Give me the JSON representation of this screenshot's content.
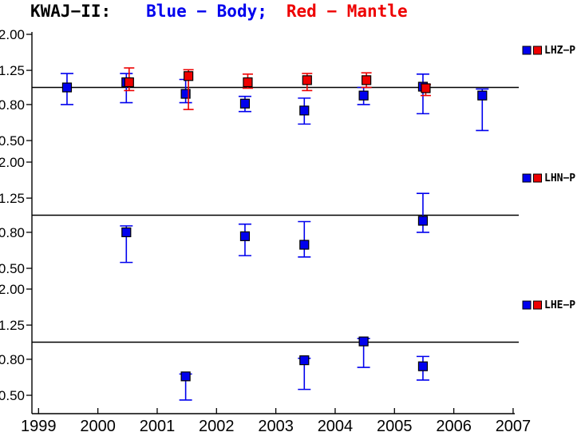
{
  "title": {
    "station": "KWAJ−II:",
    "blue_label": "Blue − Body;",
    "red_label": "Red − Mantle"
  },
  "colors": {
    "blue": "#0000ee",
    "red": "#ee0000",
    "axis": "#000000",
    "background": "#ffffff"
  },
  "chart_data": {
    "type": "scatter",
    "subtype": "error-bar-time-series",
    "title": "KWAJ−II: Blue − Body; Red − Mantle",
    "y_scale": "log",
    "x_range": [
      1999,
      2007
    ],
    "y_range": [
      0.45,
      2.0
    ],
    "x_tick_labels": [
      "1999",
      "2000",
      "2001",
      "2002",
      "2003",
      "2004",
      "2005",
      "2006",
      "2007"
    ],
    "y_tick_values": [
      2.0,
      1.25,
      0.8,
      0.5
    ],
    "y_tick_labels": [
      "2.00",
      "1.25",
      "0.80",
      "0.50"
    ],
    "reference_line": 1.0,
    "grid": false,
    "legend_position": "right",
    "panels": [
      {
        "label": "LHZ−P",
        "series": [
          {
            "name": "Body",
            "color": "#0000ee",
            "points": [
              {
                "x": 1999.5,
                "v": 1.0,
                "lo": 0.8,
                "hi": 1.2
              },
              {
                "x": 2000.5,
                "v": 1.07,
                "lo": 0.82,
                "hi": 1.2
              },
              {
                "x": 2001.5,
                "v": 0.92,
                "lo": 0.82,
                "hi": 1.11
              },
              {
                "x": 2002.5,
                "v": 0.81,
                "lo": 0.73,
                "hi": 0.89
              },
              {
                "x": 2003.5,
                "v": 0.74,
                "lo": 0.62,
                "hi": 0.87
              },
              {
                "x": 2004.5,
                "v": 0.9,
                "lo": 0.8,
                "hi": 1.0
              },
              {
                "x": 2005.5,
                "v": 1.01,
                "lo": 0.71,
                "hi": 1.19
              },
              {
                "x": 2006.5,
                "v": 0.9,
                "lo": 0.57,
                "hi": 0.98
              }
            ]
          },
          {
            "name": "Mantle",
            "color": "#ee0000",
            "points": [
              {
                "x": 2000.5,
                "v": 1.07,
                "lo": 0.96,
                "hi": 1.29
              },
              {
                "x": 2001.5,
                "v": 1.16,
                "lo": 0.75,
                "hi": 1.26
              },
              {
                "x": 2002.5,
                "v": 1.07,
                "lo": 0.99,
                "hi": 1.19
              },
              {
                "x": 2003.5,
                "v": 1.1,
                "lo": 0.96,
                "hi": 1.2
              },
              {
                "x": 2004.5,
                "v": 1.1,
                "lo": 1.0,
                "hi": 1.21
              },
              {
                "x": 2005.5,
                "v": 0.99,
                "lo": 0.9,
                "hi": 1.04
              }
            ]
          }
        ]
      },
      {
        "label": "LHN−P",
        "series": [
          {
            "name": "Body",
            "color": "#0000ee",
            "points": [
              {
                "x": 2000.5,
                "v": 0.8,
                "lo": 0.54,
                "hi": 0.87
              },
              {
                "x": 2002.5,
                "v": 0.76,
                "lo": 0.59,
                "hi": 0.89
              },
              {
                "x": 2003.5,
                "v": 0.68,
                "lo": 0.58,
                "hi": 0.92
              },
              {
                "x": 2005.5,
                "v": 0.93,
                "lo": 0.8,
                "hi": 1.33
              }
            ]
          },
          {
            "name": "Mantle",
            "color": "#ee0000",
            "points": []
          }
        ]
      },
      {
        "label": "LHE−P",
        "series": [
          {
            "name": "Body",
            "color": "#0000ee",
            "points": [
              {
                "x": 2001.5,
                "v": 0.64,
                "lo": 0.47,
                "hi": 0.66
              },
              {
                "x": 2003.5,
                "v": 0.79,
                "lo": 0.54,
                "hi": 0.81
              },
              {
                "x": 2004.5,
                "v": 1.01,
                "lo": 0.72,
                "hi": 1.05
              },
              {
                "x": 2005.5,
                "v": 0.73,
                "lo": 0.61,
                "hi": 0.83
              }
            ]
          },
          {
            "name": "Mantle",
            "color": "#ee0000",
            "points": []
          }
        ]
      }
    ]
  }
}
